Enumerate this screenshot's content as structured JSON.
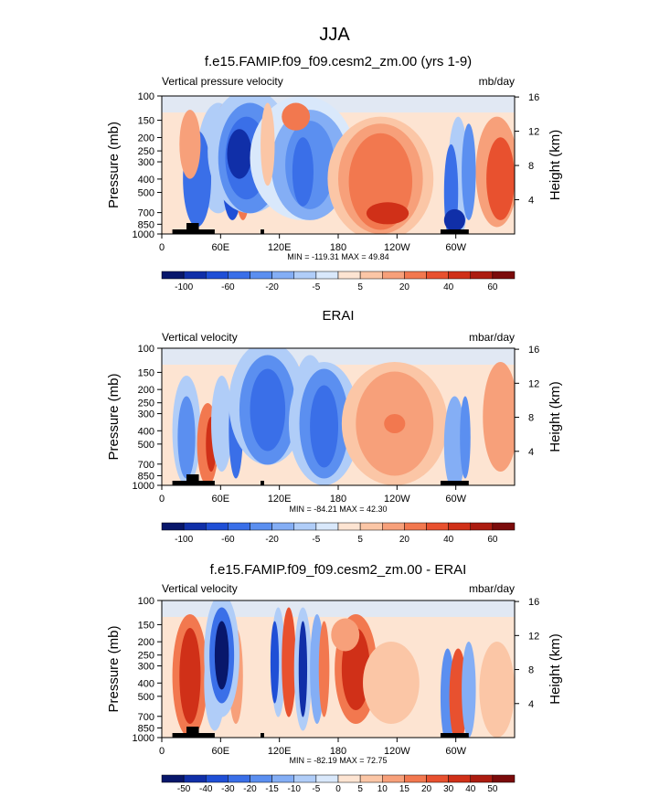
{
  "figure": {
    "title": "JJA"
  },
  "chart_data": [
    {
      "type": "heatmap",
      "title": "f.e15.FAMIP.f09_f09.cesm2_zm.00 (yrs 1-9)",
      "left_label": "Vertical pressure velocity",
      "right_label": "mb/day",
      "xlabel": "",
      "ylabel": "Pressure (mb)",
      "ylabel_right": "Height (km)",
      "x_ticks": [
        "0",
        "60E",
        "120E",
        "180",
        "120W",
        "60W"
      ],
      "y_ticks": [
        "100",
        "150",
        "200",
        "250",
        "300",
        "400",
        "500",
        "700",
        "850",
        "1000"
      ],
      "y_right_ticks": [
        "4",
        "8",
        "12",
        "16"
      ],
      "stats": "MIN = -119.31   MAX =  49.84",
      "colorbar_labels": [
        "-100",
        "-60",
        "-20",
        "-5",
        "5",
        "20",
        "40",
        "60"
      ],
      "colorbar_colors": [
        "#08176b",
        "#102fa8",
        "#1f4fd6",
        "#3a6fe8",
        "#5b8ff0",
        "#84aef5",
        "#b0cdf8",
        "#d9e8fb",
        "#fde4d2",
        "#fbc6a6",
        "#f7a07a",
        "#f2784f",
        "#e8512f",
        "#d03018",
        "#ac1c10",
        "#7b0b0b"
      ]
    },
    {
      "type": "heatmap",
      "title": "ERAI",
      "left_label": "Vertical velocity",
      "right_label": "mbar/day",
      "xlabel": "",
      "ylabel": "Pressure (mb)",
      "ylabel_right": "Height (km)",
      "x_ticks": [
        "0",
        "60E",
        "120E",
        "180",
        "120W",
        "60W"
      ],
      "y_ticks": [
        "100",
        "150",
        "200",
        "250",
        "300",
        "400",
        "500",
        "700",
        "850",
        "1000"
      ],
      "y_right_ticks": [
        "4",
        "8",
        "12",
        "16"
      ],
      "stats": "MIN = -84.21   MAX =  42.30",
      "colorbar_labels": [
        "-100",
        "-60",
        "-20",
        "-5",
        "5",
        "20",
        "40",
        "60"
      ],
      "colorbar_colors": [
        "#08176b",
        "#102fa8",
        "#1f4fd6",
        "#3a6fe8",
        "#5b8ff0",
        "#84aef5",
        "#b0cdf8",
        "#d9e8fb",
        "#fde4d2",
        "#fbc6a6",
        "#f7a07a",
        "#f2784f",
        "#e8512f",
        "#d03018",
        "#ac1c10",
        "#7b0b0b"
      ]
    },
    {
      "type": "heatmap",
      "title": "f.e15.FAMIP.f09_f09.cesm2_zm.00 - ERAI",
      "left_label": "Vertical velocity",
      "right_label": "mbar/day",
      "xlabel": "",
      "ylabel": "Pressure (mb)",
      "ylabel_right": "Height (km)",
      "x_ticks": [
        "0",
        "60E",
        "120E",
        "180",
        "120W",
        "60W"
      ],
      "y_ticks": [
        "100",
        "150",
        "200",
        "250",
        "300",
        "400",
        "500",
        "700",
        "850",
        "1000"
      ],
      "y_right_ticks": [
        "4",
        "8",
        "12",
        "16"
      ],
      "stats": "MIN = -82.19   MAX =  72.75",
      "colorbar_labels": [
        "-50",
        "-40",
        "-30",
        "-20",
        "-15",
        "-10",
        "-5",
        "0",
        "5",
        "10",
        "15",
        "20",
        "30",
        "40",
        "50"
      ],
      "colorbar_colors": [
        "#08176b",
        "#102fa8",
        "#1f4fd6",
        "#3a6fe8",
        "#5b8ff0",
        "#84aef5",
        "#b0cdf8",
        "#d9e8fb",
        "#fde4d2",
        "#fbc6a6",
        "#f7a07a",
        "#f2784f",
        "#e8512f",
        "#d03018",
        "#ac1c10",
        "#7b0b0b"
      ]
    }
  ]
}
